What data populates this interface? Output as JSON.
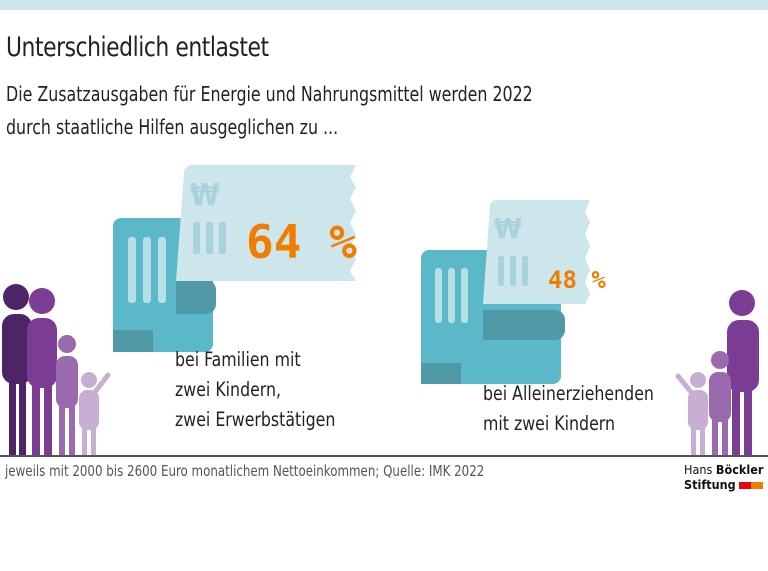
{
  "header": {
    "title": "Unterschiedlich entlastet",
    "subtitle_line1": "Die Zusatzausgaben für Energie und Nahrungsmittel werden 2022",
    "subtitle_line2": "durch staatliche Hilfen ausgeglichen zu ..."
  },
  "groups": [
    {
      "percent_label": "64 %",
      "value": 64,
      "caption": [
        "bei Familien mit",
        "zwei Kindern,",
        "zwei Erwerbstätigen"
      ]
    },
    {
      "percent_label": "48 %",
      "value": 48,
      "caption": [
        "bei Alleinerziehenden",
        "mit zwei Kindern"
      ]
    }
  ],
  "footer": {
    "note": "jeweils mit 2000 bis 2600 Euro monatlichem Nettoeinkommen; Quelle:  IMK 2022"
  },
  "logo": {
    "line1_a": "Hans",
    "line1_b": "Böckler",
    "line2": "Stiftung"
  },
  "colors": {
    "accent": "#f07d00",
    "note_dark": "#5bb8c9",
    "note_light": "#cce6eb",
    "figures": "#6b2f8a",
    "logo_red": "#e30613",
    "logo_orange": "#f07d00"
  },
  "icons": [
    "euro-banknote-icon",
    "family-figures-icon",
    "single-parent-figures-icon"
  ]
}
